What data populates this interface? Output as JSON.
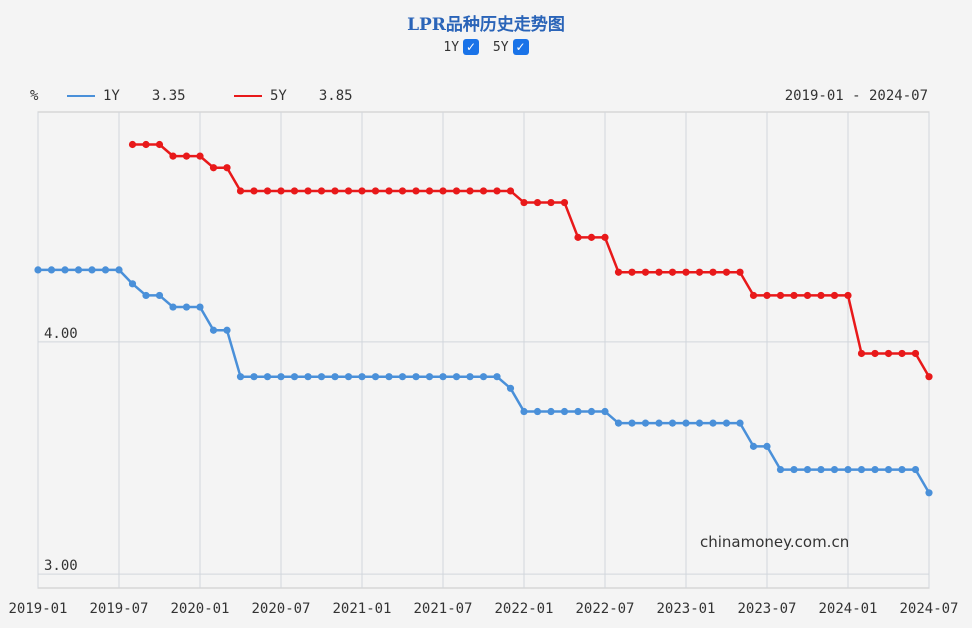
{
  "header": {
    "title": "LPR品种历史走势图",
    "unit": "%",
    "range_label": "2019-01 - 2024-07",
    "watermark": "chinamoney.com.cn"
  },
  "toggles": [
    {
      "label": "1Y",
      "checked": true
    },
    {
      "label": "5Y",
      "checked": true
    }
  ],
  "legend": [
    {
      "name": "1Y",
      "latest": "3.35",
      "color": "#4a90d9"
    },
    {
      "name": "5Y",
      "latest": "3.85",
      "color": "#e8191a"
    }
  ],
  "chart_data": {
    "type": "line",
    "x_unit": "month",
    "x_range": [
      "2019-01",
      "2024-07"
    ],
    "x_ticks": [
      "2019-01",
      "2019-07",
      "2020-01",
      "2020-07",
      "2021-01",
      "2021-07",
      "2022-01",
      "2022-07",
      "2023-01",
      "2023-07",
      "2024-01",
      "2024-07"
    ],
    "y_ticks": [
      {
        "value": 4.0,
        "label": "4.00"
      },
      {
        "value": 3.0,
        "label": "3.00"
      }
    ],
    "ylim": [
      2.94,
      4.99
    ],
    "grid": true,
    "series": [
      {
        "name": "1Y",
        "color": "#4a90d9",
        "points": [
          [
            "2019-01",
            4.31
          ],
          [
            "2019-02",
            4.31
          ],
          [
            "2019-03",
            4.31
          ],
          [
            "2019-04",
            4.31
          ],
          [
            "2019-05",
            4.31
          ],
          [
            "2019-06",
            4.31
          ],
          [
            "2019-07",
            4.31
          ],
          [
            "2019-08",
            4.25
          ],
          [
            "2019-09",
            4.2
          ],
          [
            "2019-10",
            4.2
          ],
          [
            "2019-11",
            4.15
          ],
          [
            "2019-12",
            4.15
          ],
          [
            "2020-01",
            4.15
          ],
          [
            "2020-02",
            4.05
          ],
          [
            "2020-03",
            4.05
          ],
          [
            "2020-04",
            3.85
          ],
          [
            "2020-05",
            3.85
          ],
          [
            "2020-06",
            3.85
          ],
          [
            "2020-07",
            3.85
          ],
          [
            "2020-08",
            3.85
          ],
          [
            "2020-09",
            3.85
          ],
          [
            "2020-10",
            3.85
          ],
          [
            "2020-11",
            3.85
          ],
          [
            "2020-12",
            3.85
          ],
          [
            "2021-01",
            3.85
          ],
          [
            "2021-02",
            3.85
          ],
          [
            "2021-03",
            3.85
          ],
          [
            "2021-04",
            3.85
          ],
          [
            "2021-05",
            3.85
          ],
          [
            "2021-06",
            3.85
          ],
          [
            "2021-07",
            3.85
          ],
          [
            "2021-08",
            3.85
          ],
          [
            "2021-09",
            3.85
          ],
          [
            "2021-10",
            3.85
          ],
          [
            "2021-11",
            3.85
          ],
          [
            "2021-12",
            3.8
          ],
          [
            "2022-01",
            3.7
          ],
          [
            "2022-02",
            3.7
          ],
          [
            "2022-03",
            3.7
          ],
          [
            "2022-04",
            3.7
          ],
          [
            "2022-05",
            3.7
          ],
          [
            "2022-06",
            3.7
          ],
          [
            "2022-07",
            3.7
          ],
          [
            "2022-08",
            3.65
          ],
          [
            "2022-09",
            3.65
          ],
          [
            "2022-10",
            3.65
          ],
          [
            "2022-11",
            3.65
          ],
          [
            "2022-12",
            3.65
          ],
          [
            "2023-01",
            3.65
          ],
          [
            "2023-02",
            3.65
          ],
          [
            "2023-03",
            3.65
          ],
          [
            "2023-04",
            3.65
          ],
          [
            "2023-05",
            3.65
          ],
          [
            "2023-06",
            3.55
          ],
          [
            "2023-07",
            3.55
          ],
          [
            "2023-08",
            3.45
          ],
          [
            "2023-09",
            3.45
          ],
          [
            "2023-10",
            3.45
          ],
          [
            "2023-11",
            3.45
          ],
          [
            "2023-12",
            3.45
          ],
          [
            "2024-01",
            3.45
          ],
          [
            "2024-02",
            3.45
          ],
          [
            "2024-03",
            3.45
          ],
          [
            "2024-04",
            3.45
          ],
          [
            "2024-05",
            3.45
          ],
          [
            "2024-06",
            3.45
          ],
          [
            "2024-07",
            3.35
          ]
        ]
      },
      {
        "name": "5Y",
        "color": "#e8191a",
        "points": [
          [
            "2019-08",
            4.85
          ],
          [
            "2019-09",
            4.85
          ],
          [
            "2019-10",
            4.85
          ],
          [
            "2019-11",
            4.8
          ],
          [
            "2019-12",
            4.8
          ],
          [
            "2020-01",
            4.8
          ],
          [
            "2020-02",
            4.75
          ],
          [
            "2020-03",
            4.75
          ],
          [
            "2020-04",
            4.65
          ],
          [
            "2020-05",
            4.65
          ],
          [
            "2020-06",
            4.65
          ],
          [
            "2020-07",
            4.65
          ],
          [
            "2020-08",
            4.65
          ],
          [
            "2020-09",
            4.65
          ],
          [
            "2020-10",
            4.65
          ],
          [
            "2020-11",
            4.65
          ],
          [
            "2020-12",
            4.65
          ],
          [
            "2021-01",
            4.65
          ],
          [
            "2021-02",
            4.65
          ],
          [
            "2021-03",
            4.65
          ],
          [
            "2021-04",
            4.65
          ],
          [
            "2021-05",
            4.65
          ],
          [
            "2021-06",
            4.65
          ],
          [
            "2021-07",
            4.65
          ],
          [
            "2021-08",
            4.65
          ],
          [
            "2021-09",
            4.65
          ],
          [
            "2021-10",
            4.65
          ],
          [
            "2021-11",
            4.65
          ],
          [
            "2021-12",
            4.65
          ],
          [
            "2022-01",
            4.6
          ],
          [
            "2022-02",
            4.6
          ],
          [
            "2022-03",
            4.6
          ],
          [
            "2022-04",
            4.6
          ],
          [
            "2022-05",
            4.45
          ],
          [
            "2022-06",
            4.45
          ],
          [
            "2022-07",
            4.45
          ],
          [
            "2022-08",
            4.3
          ],
          [
            "2022-09",
            4.3
          ],
          [
            "2022-10",
            4.3
          ],
          [
            "2022-11",
            4.3
          ],
          [
            "2022-12",
            4.3
          ],
          [
            "2023-01",
            4.3
          ],
          [
            "2023-02",
            4.3
          ],
          [
            "2023-03",
            4.3
          ],
          [
            "2023-04",
            4.3
          ],
          [
            "2023-05",
            4.3
          ],
          [
            "2023-06",
            4.2
          ],
          [
            "2023-07",
            4.2
          ],
          [
            "2023-08",
            4.2
          ],
          [
            "2023-09",
            4.2
          ],
          [
            "2023-10",
            4.2
          ],
          [
            "2023-11",
            4.2
          ],
          [
            "2023-12",
            4.2
          ],
          [
            "2024-01",
            4.2
          ],
          [
            "2024-02",
            3.95
          ],
          [
            "2024-03",
            3.95
          ],
          [
            "2024-04",
            3.95
          ],
          [
            "2024-05",
            3.95
          ],
          [
            "2024-06",
            3.95
          ],
          [
            "2024-07",
            3.85
          ]
        ]
      }
    ]
  }
}
